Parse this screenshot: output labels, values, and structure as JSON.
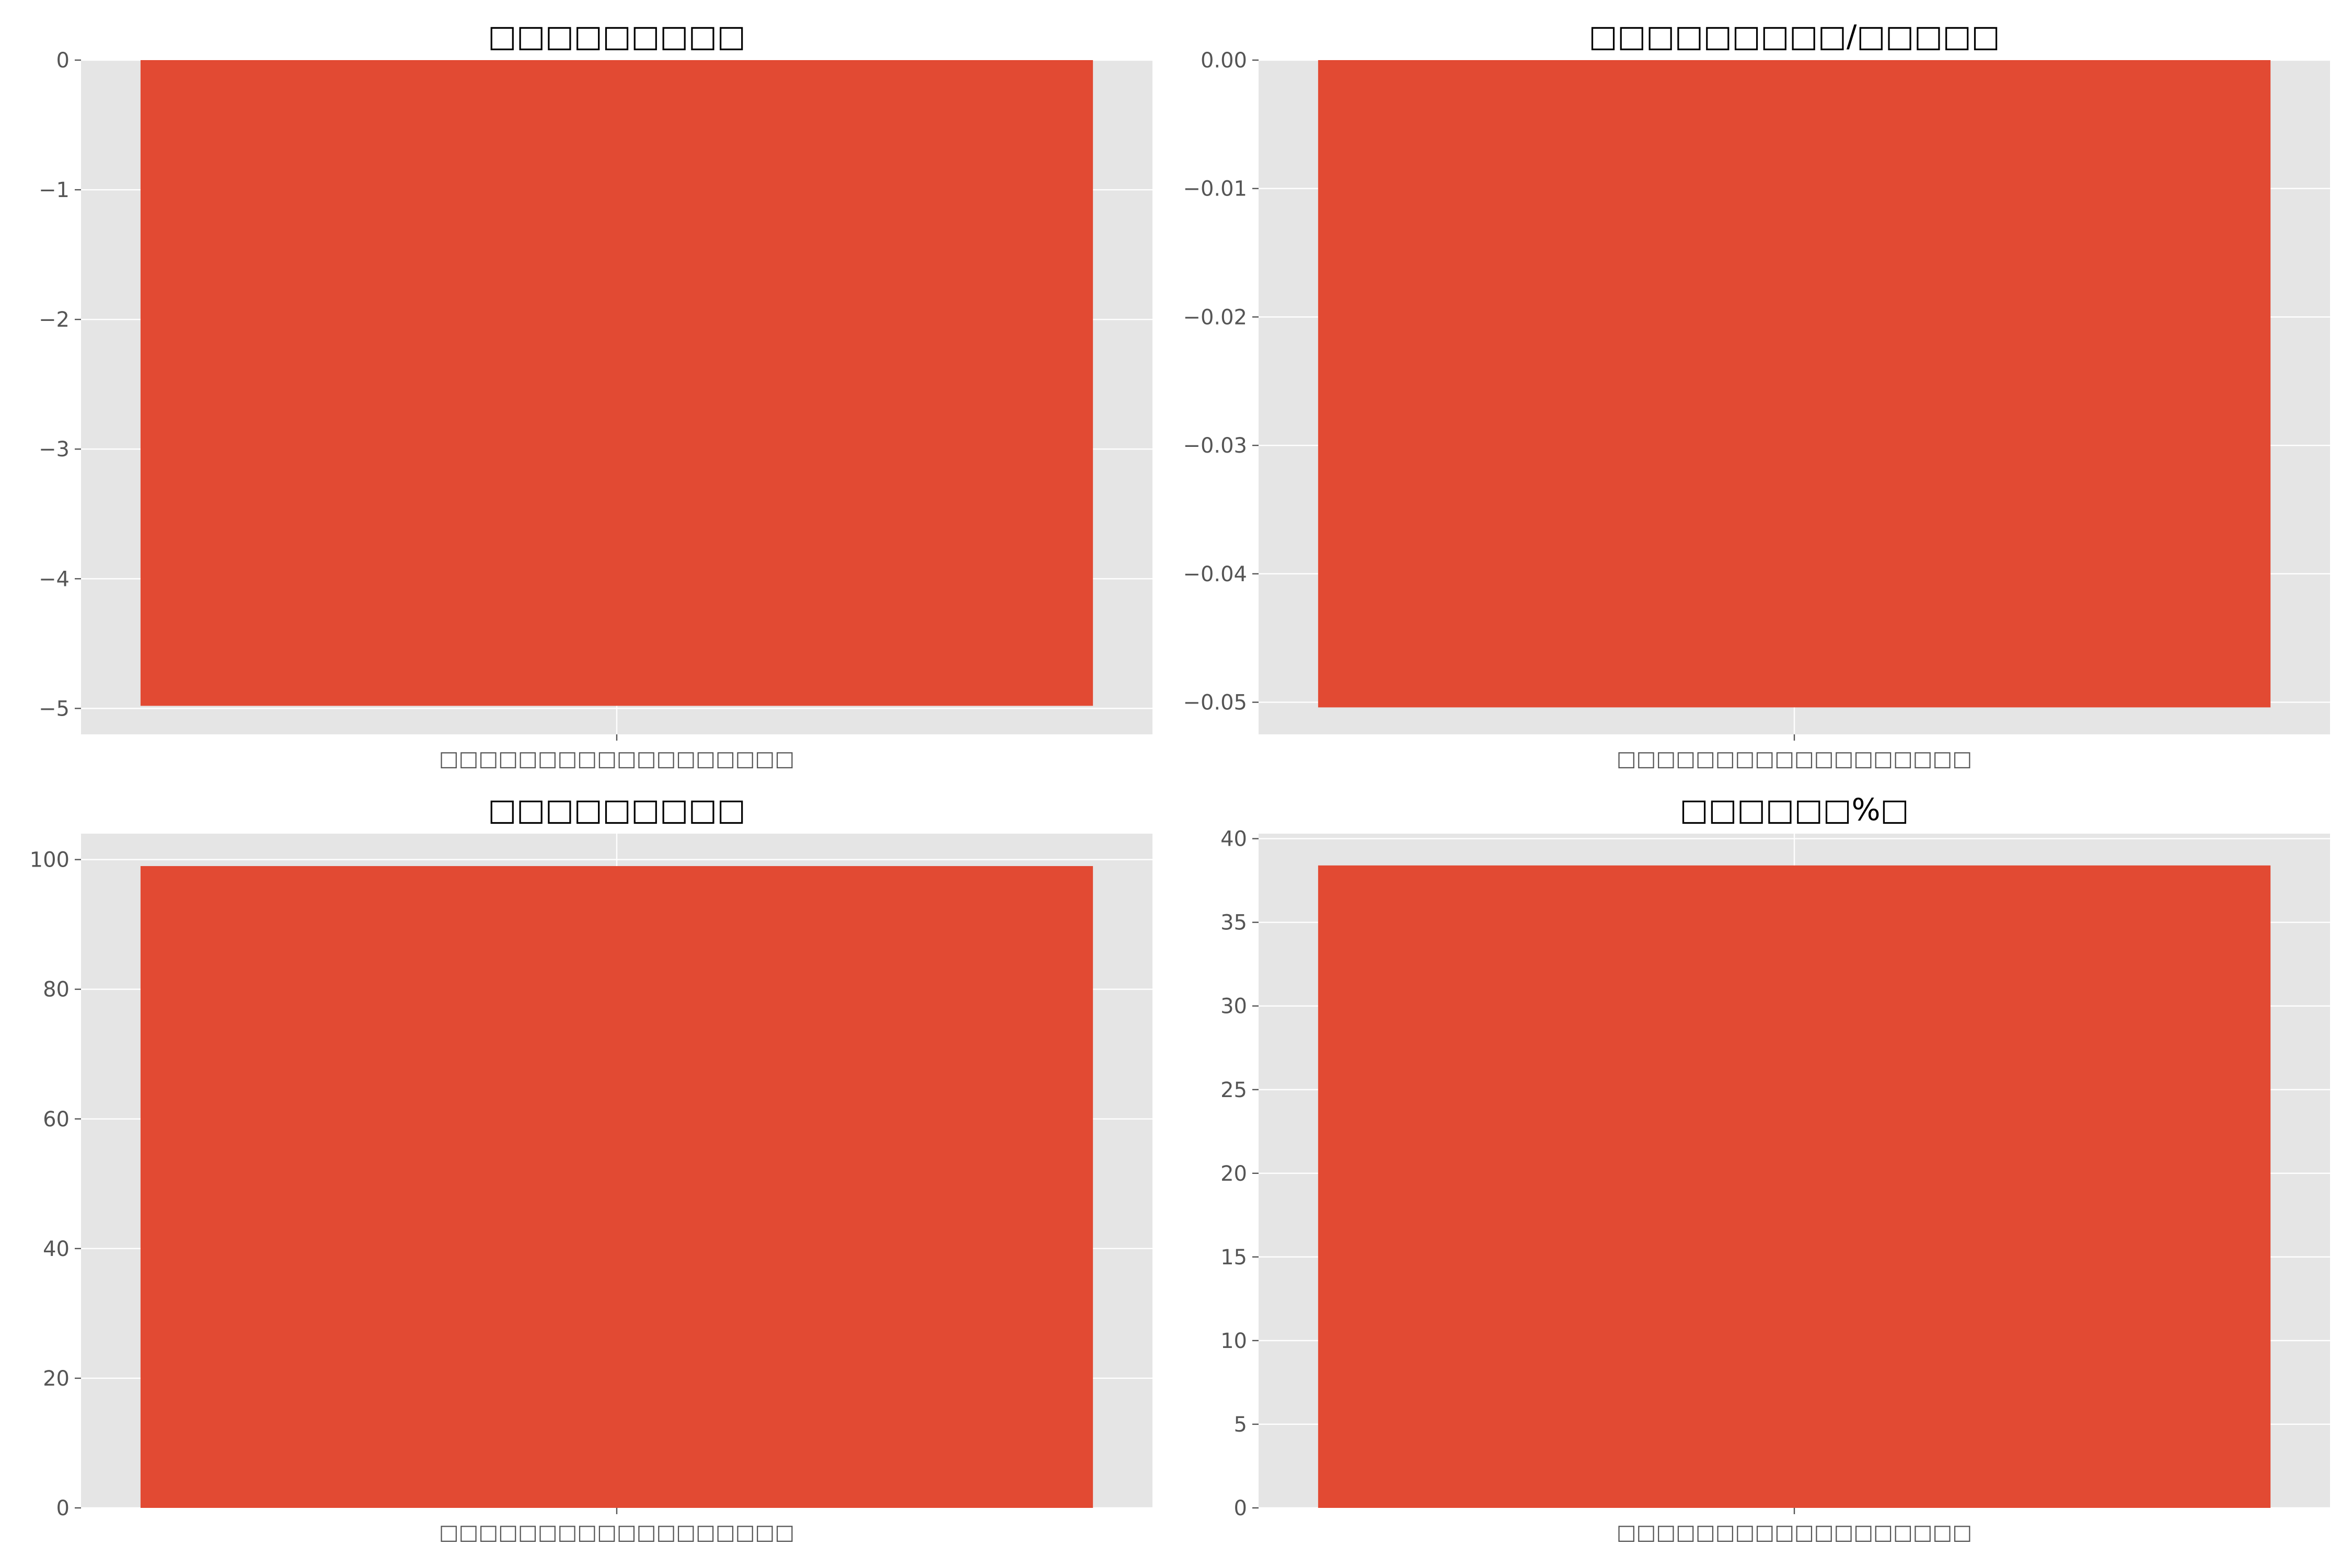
{
  "chart_data": [
    {
      "type": "bar",
      "title": "□□□□□□□□□",
      "xlabel": "",
      "ylabel": "",
      "categories": [
        "□□□□□□□□□□□□□□□□□□"
      ],
      "values": [
        -4.98
      ],
      "ylim": [
        -5.2,
        0
      ],
      "yticks": [
        0,
        -1,
        -2,
        -3,
        -4,
        -5
      ],
      "ytick_labels": [
        "0",
        "−1",
        "−2",
        "−3",
        "−4",
        "−5"
      ],
      "grid": true,
      "bar_color": "#e24a33"
    },
    {
      "type": "bar",
      "title": "□□□□□□□□□/□□□□□",
      "xlabel": "",
      "ylabel": "",
      "categories": [
        "□□□□□□□□□□□□□□□□□□"
      ],
      "values": [
        -0.0504
      ],
      "ylim": [
        -0.0525,
        0
      ],
      "yticks": [
        0,
        -0.01,
        -0.02,
        -0.03,
        -0.04,
        -0.05
      ],
      "ytick_labels": [
        "0.00",
        "−0.01",
        "−0.02",
        "−0.03",
        "−0.04",
        "−0.05"
      ],
      "grid": true,
      "bar_color": "#e24a33"
    },
    {
      "type": "bar",
      "title": "□□□□□□□□□",
      "xlabel": "",
      "ylabel": "",
      "categories": [
        "□□□□□□□□□□□□□□□□□□"
      ],
      "values": [
        99
      ],
      "ylim": [
        0,
        104
      ],
      "yticks": [
        0,
        20,
        40,
        60,
        80,
        100
      ],
      "ytick_labels": [
        "0",
        "20",
        "40",
        "60",
        "80",
        "100"
      ],
      "grid": true,
      "bar_color": "#e24a33"
    },
    {
      "type": "bar",
      "title": "□□□□□□%□",
      "xlabel": "",
      "ylabel": "",
      "categories": [
        "□□□□□□□□□□□□□□□□□□"
      ],
      "values": [
        38.4
      ],
      "ylim": [
        0,
        40.3
      ],
      "yticks": [
        0,
        5,
        10,
        15,
        20,
        25,
        30,
        35,
        40
      ],
      "ytick_labels": [
        "0",
        "5",
        "10",
        "15",
        "20",
        "25",
        "30",
        "35",
        "40"
      ],
      "grid": true,
      "bar_color": "#e24a33"
    }
  ]
}
